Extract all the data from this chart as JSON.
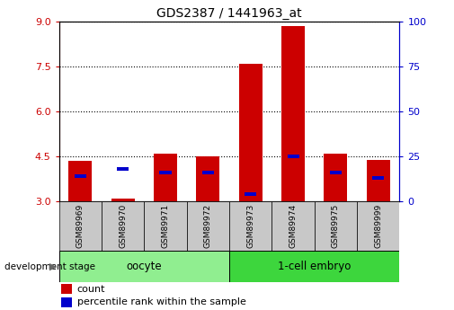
{
  "title": "GDS2387 / 1441963_at",
  "samples": [
    "GSM89969",
    "GSM89970",
    "GSM89971",
    "GSM89972",
    "GSM89973",
    "GSM89974",
    "GSM89975",
    "GSM89999"
  ],
  "red_values": [
    4.35,
    3.1,
    4.6,
    4.5,
    7.6,
    8.85,
    4.6,
    4.4
  ],
  "blue_percentiles": [
    14,
    18,
    16,
    16,
    4,
    25,
    16,
    13
  ],
  "ylim_left": [
    3.0,
    9.0
  ],
  "yticks_left": [
    3,
    4.5,
    6,
    7.5,
    9
  ],
  "ylim_right": [
    0,
    100
  ],
  "yticks_right": [
    0,
    25,
    50,
    75,
    100
  ],
  "groups": [
    {
      "label": "oocyte",
      "indices": [
        0,
        1,
        2,
        3
      ],
      "color": "#90EE90"
    },
    {
      "label": "1-cell embryo",
      "indices": [
        4,
        5,
        6,
        7
      ],
      "color": "#3DD63D"
    }
  ],
  "bar_width": 0.55,
  "red_color": "#CC0000",
  "blue_color": "#0000CC",
  "left_tick_color": "#CC0000",
  "right_tick_color": "#0000CC",
  "xlabel_area_color": "#C8C8C8",
  "bottom_label": "development stage",
  "legend_count_label": "count",
  "legend_pct_label": "percentile rank within the sample"
}
